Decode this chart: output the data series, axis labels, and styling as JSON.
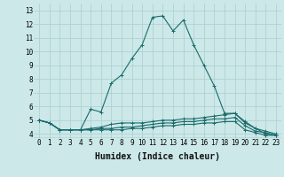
{
  "xlabel": "Humidex (Indice chaleur)",
  "bg_color": "#cce8e8",
  "grid_color": "#aacece",
  "line_color": "#1a6b6b",
  "xlim": [
    -0.5,
    23.5
  ],
  "ylim": [
    3.7,
    13.5
  ],
  "xticks": [
    0,
    1,
    2,
    3,
    4,
    5,
    6,
    7,
    8,
    9,
    10,
    11,
    12,
    13,
    14,
    15,
    16,
    17,
    18,
    19,
    20,
    21,
    22,
    23
  ],
  "yticks": [
    4,
    5,
    6,
    7,
    8,
    9,
    10,
    11,
    12,
    13
  ],
  "series": [
    [
      5.0,
      4.8,
      4.3,
      4.3,
      4.3,
      5.8,
      5.6,
      7.7,
      8.3,
      9.5,
      10.5,
      12.5,
      12.6,
      11.5,
      12.3,
      10.5,
      9.0,
      7.5,
      5.5,
      5.5,
      4.9,
      4.4,
      4.0,
      3.9
    ],
    [
      5.0,
      4.8,
      4.3,
      4.3,
      4.3,
      4.4,
      4.5,
      4.7,
      4.8,
      4.8,
      4.8,
      4.9,
      5.0,
      5.0,
      5.1,
      5.1,
      5.2,
      5.3,
      5.4,
      5.5,
      4.8,
      4.4,
      4.2,
      4.0
    ],
    [
      5.0,
      4.8,
      4.3,
      4.3,
      4.3,
      4.3,
      4.4,
      4.4,
      4.5,
      4.5,
      4.6,
      4.7,
      4.8,
      4.8,
      4.9,
      4.9,
      5.0,
      5.1,
      5.1,
      5.2,
      4.6,
      4.2,
      4.1,
      3.9
    ],
    [
      5.0,
      4.8,
      4.3,
      4.3,
      4.3,
      4.3,
      4.3,
      4.3,
      4.3,
      4.4,
      4.4,
      4.5,
      4.6,
      4.6,
      4.7,
      4.7,
      4.8,
      4.8,
      4.9,
      4.9,
      4.3,
      4.1,
      3.9,
      3.9
    ]
  ],
  "marker": "+",
  "marker_size": 3,
  "linewidth": 0.8,
  "tick_fontsize": 5.5,
  "xlabel_fontsize": 7
}
